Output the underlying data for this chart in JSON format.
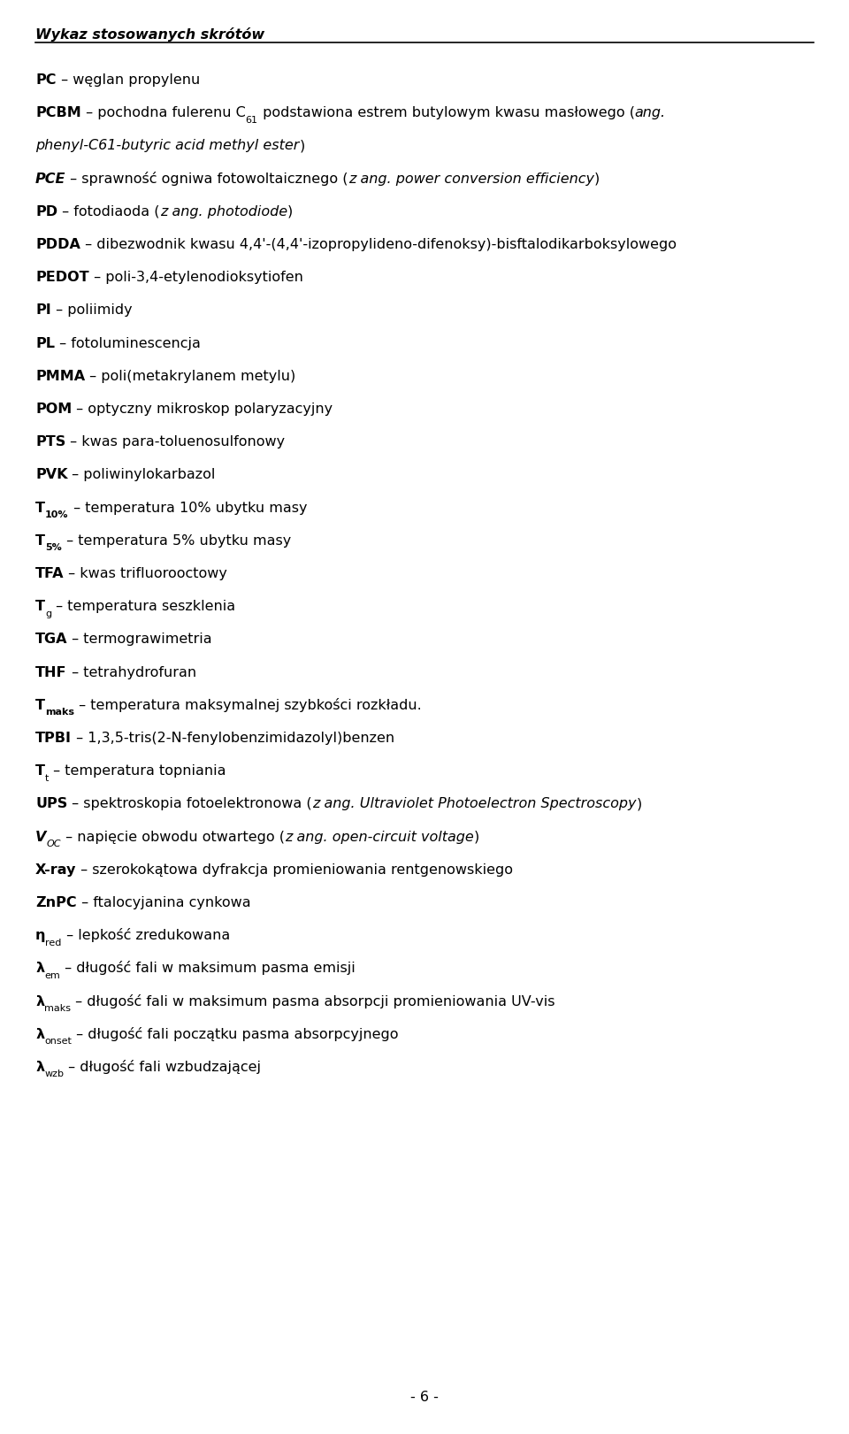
{
  "title": "Wykaz stosowanych skrótów",
  "background_color": "#ffffff",
  "text_color": "#000000",
  "title_fontsize": 11.5,
  "body_fontsize": 11.5,
  "page_number": "- 6 -",
  "lines": [
    {
      "parts": [
        {
          "text": "PC",
          "bold": true,
          "italic": false
        },
        {
          "text": " – węglan propylenu",
          "bold": false,
          "italic": false
        }
      ]
    },
    {
      "parts": [
        {
          "text": "PCBM",
          "bold": true,
          "italic": false
        },
        {
          "text": " – pochodna fulerenu C",
          "bold": false,
          "italic": false
        },
        {
          "text": "61",
          "bold": false,
          "italic": false,
          "sub": true
        },
        {
          "text": " podstawiona estrem butylowym kwasu masłowego (",
          "bold": false,
          "italic": false
        },
        {
          "text": "ang.",
          "bold": false,
          "italic": true
        }
      ]
    },
    {
      "parts": [
        {
          "text": "phenyl-C61-butyric acid methyl ester",
          "bold": false,
          "italic": true
        },
        {
          "text": ")",
          "bold": false,
          "italic": false
        }
      ]
    },
    {
      "parts": [
        {
          "text": "PCE",
          "bold": true,
          "italic": true
        },
        {
          "text": " – sprawność ogniwa fotowoltaicznego (",
          "bold": false,
          "italic": false
        },
        {
          "text": "z ang. power conversion efficiency",
          "bold": false,
          "italic": true
        },
        {
          "text": ")",
          "bold": false,
          "italic": false
        }
      ]
    },
    {
      "parts": [
        {
          "text": "PD",
          "bold": true,
          "italic": false
        },
        {
          "text": " – fotodiaoda (",
          "bold": false,
          "italic": false
        },
        {
          "text": "z ang. photodiode",
          "bold": false,
          "italic": true
        },
        {
          "text": ")",
          "bold": false,
          "italic": false
        }
      ]
    },
    {
      "parts": [
        {
          "text": "PDDA",
          "bold": true,
          "italic": false
        },
        {
          "text": " – dibezwodnik kwasu 4,4'-(4,4'-izopropylideno-difenoksy)-bisftalodikarboksylowego",
          "bold": false,
          "italic": false
        }
      ]
    },
    {
      "parts": [
        {
          "text": "PEDOT",
          "bold": true,
          "italic": false
        },
        {
          "text": " – poli-3,4-etylenodioksytiofen",
          "bold": false,
          "italic": false
        }
      ]
    },
    {
      "parts": [
        {
          "text": "PI",
          "bold": true,
          "italic": false
        },
        {
          "text": " – poliimidy",
          "bold": false,
          "italic": false
        }
      ]
    },
    {
      "parts": [
        {
          "text": "PL",
          "bold": true,
          "italic": false
        },
        {
          "text": " – fotoluminescencja",
          "bold": false,
          "italic": false
        }
      ]
    },
    {
      "parts": [
        {
          "text": "PMMA",
          "bold": true,
          "italic": false
        },
        {
          "text": " – poli(metakrylanem metylu)",
          "bold": false,
          "italic": false
        }
      ]
    },
    {
      "parts": [
        {
          "text": "POM",
          "bold": true,
          "italic": false
        },
        {
          "text": " – optyczny mikroskop polaryzacyjny",
          "bold": false,
          "italic": false
        }
      ]
    },
    {
      "parts": [
        {
          "text": "PTS",
          "bold": true,
          "italic": false
        },
        {
          "text": " – kwas para-toluenosulfonowy",
          "bold": false,
          "italic": false
        }
      ]
    },
    {
      "parts": [
        {
          "text": "PVK",
          "bold": true,
          "italic": false
        },
        {
          "text": " – poliwinylokarbazol",
          "bold": false,
          "italic": false
        }
      ]
    },
    {
      "parts": [
        {
          "text": "T",
          "bold": true,
          "italic": false
        },
        {
          "text": "10%",
          "bold": true,
          "italic": false,
          "sub": true
        },
        {
          "text": " – temperatura 10% ubytku masy",
          "bold": false,
          "italic": false
        }
      ]
    },
    {
      "parts": [
        {
          "text": "T",
          "bold": true,
          "italic": false
        },
        {
          "text": "5%",
          "bold": true,
          "italic": false,
          "sub": true
        },
        {
          "text": " – temperatura 5% ubytku masy",
          "bold": false,
          "italic": false
        }
      ]
    },
    {
      "parts": [
        {
          "text": "TFA",
          "bold": true,
          "italic": false
        },
        {
          "text": " – kwas trifluorooctowy",
          "bold": false,
          "italic": false
        }
      ]
    },
    {
      "parts": [
        {
          "text": "T",
          "bold": true,
          "italic": false
        },
        {
          "text": "g",
          "bold": false,
          "italic": false,
          "sub": true
        },
        {
          "text": " – temperatura seszklenia",
          "bold": false,
          "italic": false
        }
      ]
    },
    {
      "parts": [
        {
          "text": "TGA",
          "bold": true,
          "italic": false
        },
        {
          "text": " – termograwimetria",
          "bold": false,
          "italic": false
        }
      ]
    },
    {
      "parts": [
        {
          "text": "THF",
          "bold": true,
          "italic": false
        },
        {
          "text": " – tetrahydrofuran",
          "bold": false,
          "italic": false
        }
      ]
    },
    {
      "parts": [
        {
          "text": "T",
          "bold": true,
          "italic": false
        },
        {
          "text": "maks",
          "bold": true,
          "italic": false,
          "sub": true
        },
        {
          "text": " – temperatura maksymalnej szybkości rozkładu.",
          "bold": false,
          "italic": false
        }
      ]
    },
    {
      "parts": [
        {
          "text": "TPBI",
          "bold": true,
          "italic": false
        },
        {
          "text": " – 1,3,5-tris(2-N-fenylobenzimidazolyl)benzen",
          "bold": false,
          "italic": false
        }
      ]
    },
    {
      "parts": [
        {
          "text": "T",
          "bold": true,
          "italic": false
        },
        {
          "text": "t",
          "bold": false,
          "italic": false,
          "sub": true
        },
        {
          "text": " – temperatura topniania",
          "bold": false,
          "italic": false
        }
      ]
    },
    {
      "parts": [
        {
          "text": "UPS",
          "bold": true,
          "italic": false
        },
        {
          "text": " – spektroskopia fotoelektronowa (",
          "bold": false,
          "italic": false
        },
        {
          "text": "z ang. Ultraviolet Photoelectron Spectroscopy",
          "bold": false,
          "italic": true
        },
        {
          "text": ")",
          "bold": false,
          "italic": false
        }
      ]
    },
    {
      "parts": [
        {
          "text": "V",
          "bold": true,
          "italic": true
        },
        {
          "text": "OC",
          "bold": false,
          "italic": true,
          "sub": true
        },
        {
          "text": " – napięcie obwodu otwartego (",
          "bold": false,
          "italic": false
        },
        {
          "text": "z ang. open-circuit voltage",
          "bold": false,
          "italic": true
        },
        {
          "text": ")",
          "bold": false,
          "italic": false
        }
      ]
    },
    {
      "parts": [
        {
          "text": "X-ray",
          "bold": true,
          "italic": false
        },
        {
          "text": " – szerokokątowa dyfrakcja promieniowania rentgenowskiego",
          "bold": false,
          "italic": false
        }
      ]
    },
    {
      "parts": [
        {
          "text": "ZnPC",
          "bold": true,
          "italic": false
        },
        {
          "text": " – ftalocyjanina cynkowa",
          "bold": false,
          "italic": false
        }
      ]
    },
    {
      "parts": [
        {
          "text": "η",
          "bold": true,
          "italic": false
        },
        {
          "text": "red",
          "bold": false,
          "italic": false,
          "sub": true
        },
        {
          "text": " – lepkość zredukowana",
          "bold": false,
          "italic": false
        }
      ]
    },
    {
      "parts": [
        {
          "text": "λ",
          "bold": true,
          "italic": false
        },
        {
          "text": "em",
          "bold": false,
          "italic": false,
          "sub": true
        },
        {
          "text": " – długość fali w maksimum pasma emisji",
          "bold": false,
          "italic": false
        }
      ]
    },
    {
      "parts": [
        {
          "text": "λ",
          "bold": true,
          "italic": false
        },
        {
          "text": "maks",
          "bold": false,
          "italic": false,
          "sub": true
        },
        {
          "text": " – długość fali w maksimum pasma absorpcji promieniowania UV-vis",
          "bold": false,
          "italic": false
        }
      ]
    },
    {
      "parts": [
        {
          "text": "λ",
          "bold": true,
          "italic": false
        },
        {
          "text": "onset",
          "bold": false,
          "italic": false,
          "sub": true
        },
        {
          "text": " – długość fali początku pasma absorpcyjnego",
          "bold": false,
          "italic": false
        }
      ]
    },
    {
      "parts": [
        {
          "text": "λ",
          "bold": true,
          "italic": false
        },
        {
          "text": "wzb",
          "bold": false,
          "italic": false,
          "sub": true
        },
        {
          "text": " – długość fali wzbudzającej",
          "bold": false,
          "italic": false
        }
      ]
    }
  ]
}
